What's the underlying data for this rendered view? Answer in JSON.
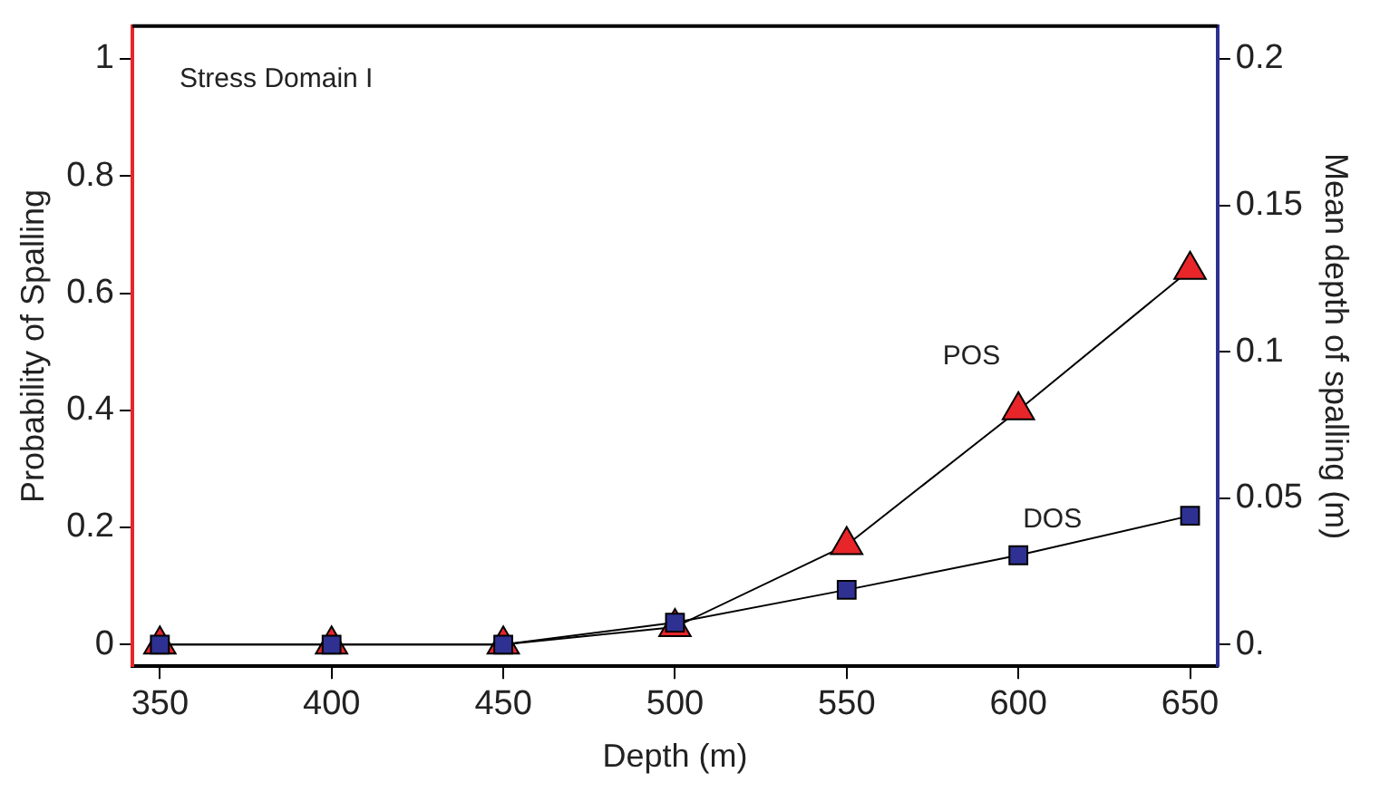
{
  "chart_data": {
    "type": "line",
    "xlabel": "Depth (m)",
    "ylabel": "Probability of Spalling",
    "y2label": "Mean depth of spalling (m)",
    "annotations": [
      "Stress Domain I"
    ],
    "x": [
      350,
      400,
      450,
      500,
      550,
      600,
      650
    ],
    "series": [
      {
        "name": "POS",
        "color": "#e8262a",
        "marker": "triangle",
        "values": [
          0,
          0,
          0,
          0.03,
          0.17,
          0.4,
          0.64
        ]
      },
      {
        "name": "DOS",
        "color": "#2e3192",
        "marker": "square",
        "axis": "y2",
        "values": [
          0,
          0,
          0,
          0.0075,
          0.0187,
          0.0305,
          0.044
        ]
      }
    ],
    "xlim": [
      342,
      658
    ],
    "xticks": [
      350,
      400,
      450,
      500,
      550,
      600,
      650
    ],
    "ylim": [
      -0.037,
      1.056
    ],
    "yticks": [
      0,
      0.2,
      0.4,
      0.6,
      0.8,
      1
    ],
    "y2lim": [
      -0.0074,
      0.2112
    ],
    "y2ticks": [
      {
        "value": 0,
        "label": "0."
      },
      0.05,
      0.1,
      0.15,
      0.2
    ],
    "grid": false,
    "legend": false,
    "line_style": "solid"
  }
}
